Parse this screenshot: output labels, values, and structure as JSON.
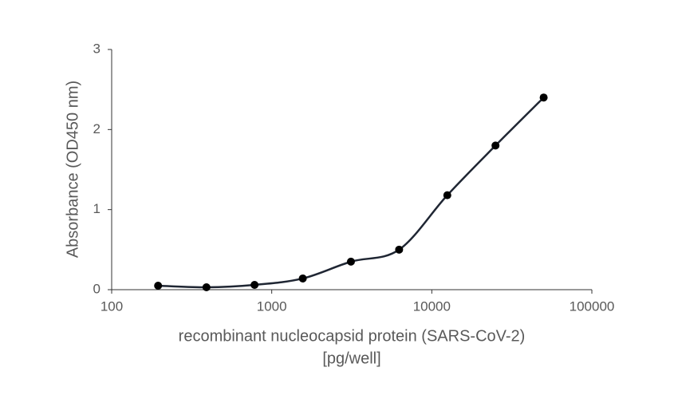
{
  "chart_data": {
    "type": "line",
    "xlabel": [
      "recombinant nucleocapsid protein (SARS-CoV-2)",
      "[pg/well]"
    ],
    "ylabel": "Absorbance (OD450 nm)",
    "x": [
      195,
      391,
      781,
      1563,
      3125,
      6250,
      12500,
      25000,
      50000
    ],
    "series": [
      {
        "color": "#1f2633",
        "values": [
          0.05,
          0.03,
          0.06,
          0.14,
          0.35,
          0.5,
          1.18,
          1.8,
          2.4
        ]
      }
    ],
    "xscale": "log",
    "xlim": [
      100,
      100000
    ],
    "xticks": [
      100,
      1000,
      10000,
      100000
    ],
    "ylim": [
      0,
      3
    ],
    "yticks": [
      0,
      1,
      2,
      3
    ],
    "smooth": true,
    "grid": false
  }
}
